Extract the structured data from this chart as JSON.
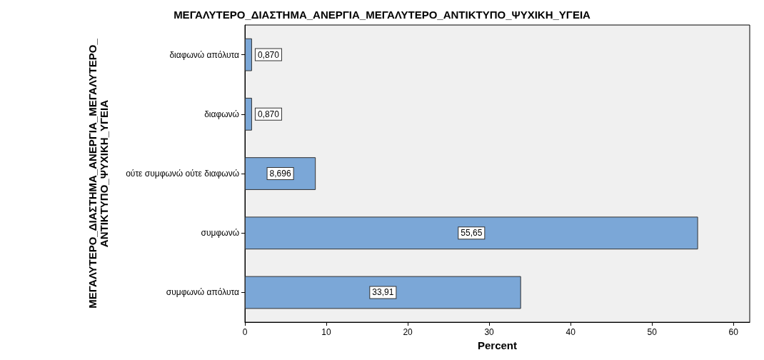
{
  "chart_data": {
    "type": "bar",
    "orientation": "horizontal",
    "title": "ΜΕΓΑΛΥΤΕΡΟ_ΔΙΑΣΤΗΜΑ_ΑΝΕΡΓΙΑ_ΜΕΓΑΛΥΤΕΡΟ_ΑΝΤΙΚΤΥΠΟ_ΨΥΧΙΚΗ_ΥΓΕΙΑ",
    "xlabel": "Percent",
    "ylabel": "ΜΕΓΑΛΥΤΕΡΟ_ΔΙΑΣΤΗΜΑ_ΑΝΕΡΓΙΑ_ΜΕΓΑΛΥΤΕΡΟ_\nΑΝΤΙΚΤΥΠΟ_ΨΥΧΙΚΗ_ΥΓΕΙΑ",
    "categories": [
      "διαφωνώ απόλυτα",
      "διαφωνώ",
      "ούτε συμφωνώ ούτε διαφωνώ",
      "συμφωνώ",
      "συμφωνώ απόλυτα"
    ],
    "values": [
      0.87,
      0.87,
      8.696,
      55.65,
      33.91
    ],
    "value_labels": [
      "0,870",
      "0,870",
      "8,696",
      "55,65",
      "33,91"
    ],
    "color": "#7ba7d7",
    "xlim": [
      0,
      62
    ],
    "xticks": [
      0,
      10,
      20,
      30,
      40,
      50,
      60
    ],
    "grid": false
  }
}
